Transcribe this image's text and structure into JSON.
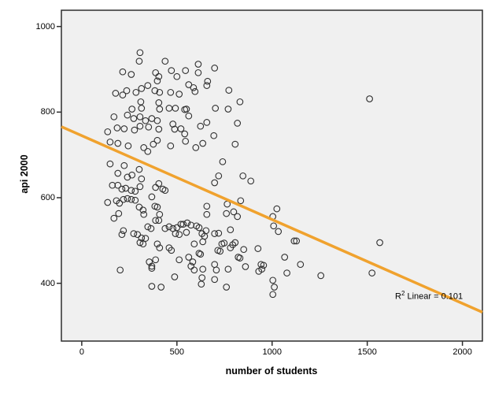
{
  "chart_data": {
    "type": "scatter",
    "title": "",
    "xlabel": "number of students",
    "ylabel": "api 2000",
    "xlim": [
      -107,
      2105
    ],
    "ylim": [
      265,
      1038
    ],
    "xticks": [
      0,
      500,
      1000,
      1500,
      2000
    ],
    "yticks": [
      400,
      600,
      800,
      1000
    ],
    "grid": false,
    "legend": "none",
    "plot_bg": "#F0F0F0",
    "frame_color": "#2E2E2E",
    "marker": {
      "shape": "open-circle",
      "radius": 3.8,
      "stroke": "#303030",
      "stroke_width": 1.1,
      "fill": "none"
    },
    "fit_line": {
      "type": "linear",
      "slope": -0.196,
      "intercept": 745,
      "r_squared": 0.101,
      "color": "#F0A22E",
      "width": 3.5,
      "x_start": -107,
      "x_end": 2105
    },
    "annotation": {
      "base": "R",
      "sup": "2",
      "rest": " Linear = 0.101"
    },
    "points": [
      [
        306,
        939
      ],
      [
        302,
        919
      ],
      [
        438,
        919
      ],
      [
        215,
        894
      ],
      [
        260,
        888
      ],
      [
        388,
        892
      ],
      [
        405,
        883
      ],
      [
        471,
        897
      ],
      [
        500,
        883
      ],
      [
        545,
        897
      ],
      [
        612,
        912
      ],
      [
        612,
        892
      ],
      [
        661,
        872
      ],
      [
        397,
        873
      ],
      [
        347,
        862
      ],
      [
        384,
        850
      ],
      [
        409,
        846
      ],
      [
        178,
        844
      ],
      [
        215,
        840
      ],
      [
        236,
        850
      ],
      [
        285,
        846
      ],
      [
        314,
        855
      ],
      [
        467,
        846
      ],
      [
        512,
        842
      ],
      [
        562,
        864
      ],
      [
        587,
        857
      ],
      [
        595,
        848
      ],
      [
        657,
        862
      ],
      [
        310,
        824
      ],
      [
        405,
        822
      ],
      [
        314,
        809
      ],
      [
        264,
        807
      ],
      [
        409,
        807
      ],
      [
        459,
        809
      ],
      [
        492,
        809
      ],
      [
        541,
        806
      ],
      [
        562,
        791
      ],
      [
        169,
        789
      ],
      [
        240,
        793
      ],
      [
        273,
        785
      ],
      [
        306,
        789
      ],
      [
        335,
        780
      ],
      [
        368,
        785
      ],
      [
        397,
        780
      ],
      [
        186,
        763
      ],
      [
        223,
        761
      ],
      [
        136,
        754
      ],
      [
        277,
        758
      ],
      [
        306,
        767
      ],
      [
        351,
        765
      ],
      [
        405,
        760
      ],
      [
        479,
        772
      ],
      [
        488,
        760
      ],
      [
        521,
        761
      ],
      [
        550,
        807
      ],
      [
        624,
        767
      ],
      [
        657,
        776
      ],
      [
        149,
        730
      ],
      [
        190,
        727
      ],
      [
        244,
        721
      ],
      [
        326,
        717
      ],
      [
        347,
        708
      ],
      [
        376,
        725
      ],
      [
        397,
        734
      ],
      [
        541,
        749
      ],
      [
        545,
        732
      ],
      [
        599,
        717
      ],
      [
        636,
        727
      ],
      [
        467,
        721
      ],
      [
        698,
        903
      ],
      [
        773,
        851
      ],
      [
        831,
        824
      ],
      [
        702,
        809
      ],
      [
        769,
        807
      ],
      [
        818,
        774
      ],
      [
        694,
        745
      ],
      [
        806,
        725
      ],
      [
        1512,
        831
      ],
      [
        149,
        679
      ],
      [
        190,
        657
      ],
      [
        223,
        675
      ],
      [
        240,
        648
      ],
      [
        264,
        653
      ],
      [
        302,
        666
      ],
      [
        314,
        644
      ],
      [
        161,
        629
      ],
      [
        190,
        629
      ],
      [
        211,
        620
      ],
      [
        231,
        622
      ],
      [
        260,
        617
      ],
      [
        281,
        615
      ],
      [
        306,
        626
      ],
      [
        136,
        589
      ],
      [
        182,
        593
      ],
      [
        198,
        587
      ],
      [
        219,
        596
      ],
      [
        240,
        598
      ],
      [
        260,
        596
      ],
      [
        281,
        594
      ],
      [
        194,
        563
      ],
      [
        169,
        552
      ],
      [
        302,
        578
      ],
      [
        322,
        571
      ],
      [
        326,
        561
      ],
      [
        368,
        602
      ],
      [
        388,
        624
      ],
      [
        405,
        633
      ],
      [
        426,
        620
      ],
      [
        438,
        617
      ],
      [
        384,
        580
      ],
      [
        397,
        578
      ],
      [
        409,
        561
      ],
      [
        388,
        547
      ],
      [
        405,
        547
      ],
      [
        347,
        532
      ],
      [
        364,
        528
      ],
      [
        219,
        523
      ],
      [
        211,
        514
      ],
      [
        273,
        516
      ],
      [
        293,
        514
      ],
      [
        314,
        506
      ],
      [
        335,
        505
      ],
      [
        306,
        495
      ],
      [
        322,
        492
      ],
      [
        438,
        528
      ],
      [
        459,
        532
      ],
      [
        479,
        528
      ],
      [
        500,
        530
      ],
      [
        521,
        538
      ],
      [
        533,
        538
      ],
      [
        554,
        541
      ],
      [
        492,
        516
      ],
      [
        512,
        514
      ],
      [
        550,
        519
      ],
      [
        574,
        536
      ],
      [
        603,
        534
      ],
      [
        616,
        530
      ],
      [
        632,
        516
      ],
      [
        645,
        510
      ],
      [
        459,
        483
      ],
      [
        471,
        477
      ],
      [
        397,
        492
      ],
      [
        409,
        483
      ],
      [
        388,
        455
      ],
      [
        368,
        440
      ],
      [
        355,
        450
      ],
      [
        512,
        455
      ],
      [
        562,
        461
      ],
      [
        583,
        450
      ],
      [
        591,
        492
      ],
      [
        616,
        470
      ],
      [
        624,
        468
      ],
      [
        202,
        431
      ],
      [
        488,
        415
      ],
      [
        574,
        440
      ],
      [
        636,
        497
      ],
      [
        657,
        580
      ],
      [
        657,
        561
      ],
      [
        653,
        523
      ],
      [
        632,
        413
      ],
      [
        740,
        684
      ],
      [
        719,
        651
      ],
      [
        698,
        635
      ],
      [
        847,
        651
      ],
      [
        888,
        639
      ],
      [
        764,
        585
      ],
      [
        835,
        593
      ],
      [
        760,
        563
      ],
      [
        798,
        567
      ],
      [
        818,
        556
      ],
      [
        1025,
        574
      ],
      [
        1004,
        556
      ],
      [
        1008,
        534
      ],
      [
        1033,
        521
      ],
      [
        781,
        525
      ],
      [
        698,
        516
      ],
      [
        719,
        517
      ],
      [
        1116,
        499
      ],
      [
        1128,
        499
      ],
      [
        736,
        492
      ],
      [
        748,
        494
      ],
      [
        715,
        477
      ],
      [
        727,
        475
      ],
      [
        793,
        490
      ],
      [
        806,
        495
      ],
      [
        781,
        483
      ],
      [
        851,
        479
      ],
      [
        822,
        461
      ],
      [
        831,
        459
      ],
      [
        698,
        444
      ],
      [
        769,
        433
      ],
      [
        860,
        439
      ],
      [
        926,
        481
      ],
      [
        942,
        444
      ],
      [
        955,
        442
      ],
      [
        930,
        428
      ],
      [
        1066,
        461
      ],
      [
        1149,
        444
      ],
      [
        1078,
        424
      ],
      [
        1004,
        407
      ],
      [
        1256,
        418
      ],
      [
        1566,
        495
      ],
      [
        1525,
        424
      ],
      [
        368,
        435
      ],
      [
        368,
        393
      ],
      [
        417,
        391
      ],
      [
        591,
        431
      ],
      [
        636,
        433
      ],
      [
        628,
        398
      ],
      [
        698,
        409
      ],
      [
        707,
        431
      ],
      [
        760,
        391
      ],
      [
        1012,
        391
      ],
      [
        1004,
        374
      ],
      [
        946,
        433
      ]
    ]
  }
}
